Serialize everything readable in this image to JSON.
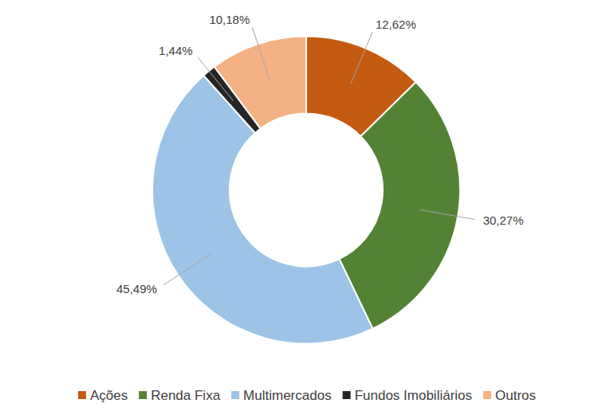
{
  "chart_data": {
    "type": "donut",
    "categories": [
      "Ações",
      "Renda Fixa",
      "Multimercados",
      "Fundos Imobiliários",
      "Outros"
    ],
    "values": [
      12.62,
      30.27,
      45.49,
      1.44,
      10.18
    ],
    "value_labels": [
      "12,62%",
      "30,27%",
      "45,49%",
      "1,44%",
      "10,18%"
    ],
    "colors": [
      "#c55a11",
      "#548235",
      "#9dc3e6",
      "#262626",
      "#f4b183"
    ],
    "data_labels": true,
    "legend": "bottom"
  }
}
